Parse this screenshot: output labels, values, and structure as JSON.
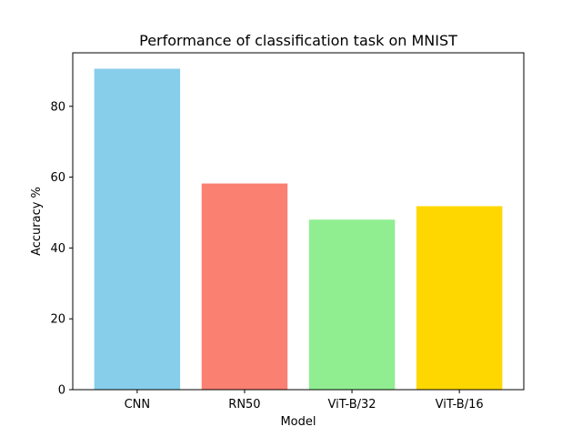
{
  "chart_data": {
    "type": "bar",
    "title": "Performance of classification task on MNIST",
    "xlabel": "Model",
    "ylabel": "Accuracy %",
    "categories": [
      "CNN",
      "RN50",
      "ViT-B/32",
      "ViT-B/16"
    ],
    "values": [
      90.6,
      58.2,
      48.0,
      51.8
    ],
    "colors": [
      "#87ceeb",
      "#fa8072",
      "#90ee90",
      "#ffd700"
    ],
    "ylim": [
      0,
      95.1
    ],
    "yticks": [
      0,
      20,
      40,
      60,
      80
    ],
    "grid": false,
    "legend": null
  }
}
